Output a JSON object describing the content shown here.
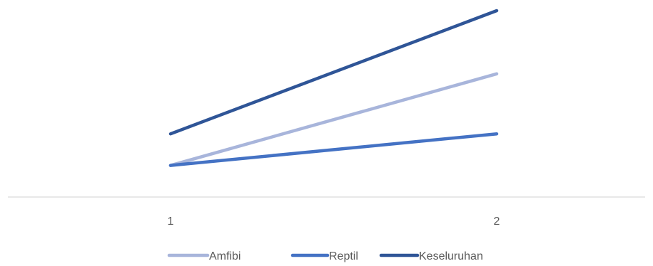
{
  "chart_data": {
    "type": "line",
    "title": "",
    "xlabel": "",
    "ylabel": "",
    "x": [
      "1",
      "2"
    ],
    "ylim": [
      0,
      6
    ],
    "grid": false,
    "legend_position": "bottom",
    "series": [
      {
        "name": "Amfibi",
        "values": [
          1,
          3.9
        ],
        "color": "#a8b5db"
      },
      {
        "name": "Reptil",
        "values": [
          1,
          2
        ],
        "color": "#4472c4"
      },
      {
        "name": "Keseluruhan",
        "values": [
          2,
          5.9
        ],
        "color": "#2f5597"
      }
    ],
    "axis_color": "#d9d9d9"
  }
}
